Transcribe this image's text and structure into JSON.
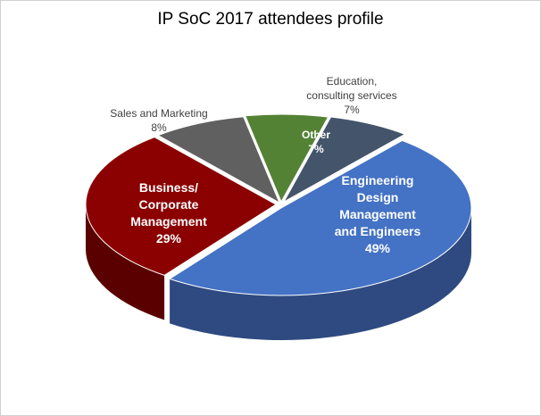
{
  "chart_data": {
    "type": "pie",
    "title": "IP SoC 2017 attendees profile",
    "slices": [
      {
        "label": [
          "Engineering",
          "Design",
          "Management",
          "and Engineers"
        ],
        "value": 49,
        "percent": "49%",
        "color": "#4472c4",
        "side_color": "#2e4a80"
      },
      {
        "label": [
          "Business/",
          "Corporate",
          "Management"
        ],
        "value": 29,
        "percent": "29%",
        "color": "#8b0000",
        "side_color": "#5a0000"
      },
      {
        "label": [
          "Sales and Marketing"
        ],
        "value": 8,
        "percent": "8%",
        "color": "#606060",
        "side_color": "#3e3e3e"
      },
      {
        "label": [
          "Education,",
          "consulting services"
        ],
        "value": 7,
        "percent": "7%",
        "color": "#548235",
        "side_color": "#375622"
      },
      {
        "label": [
          "Other"
        ],
        "value": 7,
        "percent": "7%",
        "color": "#44546a",
        "side_color": "#2c3746"
      }
    ],
    "start_angle_deg": -50.5,
    "direction": "clockwise",
    "style": "3d-exploded"
  }
}
